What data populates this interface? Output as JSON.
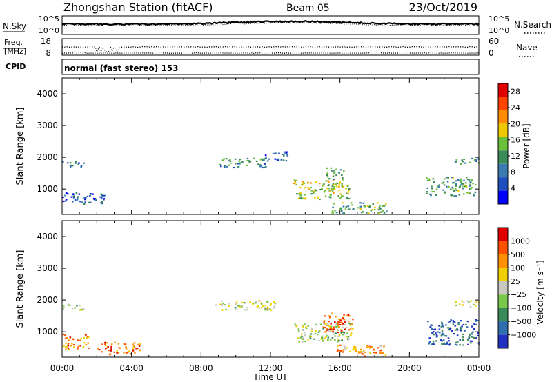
{
  "header": {
    "title": "Zhongshan Station (fitACF)",
    "beam": "Beam 05",
    "date": "23/Oct/2019"
  },
  "top_panel": {
    "left_label": "N.Sky",
    "left_ticks": [
      "10^5",
      "10^0"
    ],
    "right_ticks": [
      "10^5",
      "10^0"
    ],
    "right_label": "N.Search"
  },
  "freq_panel": {
    "left_label_1": "Freq.",
    "left_label_2": "[MHz]",
    "left_ticks": [
      "18",
      "8"
    ],
    "right_ticks": [
      "60",
      "0"
    ],
    "right_label": "Nave"
  },
  "cpid": {
    "label": "CPID",
    "text": "normal (fast stereo) 153"
  },
  "colors": {
    "power_scale": [
      "#0000ff",
      "#1f4fbf",
      "#3a7ab0",
      "#3c8c5a",
      "#6cbf3a",
      "#f0c800",
      "#ff8c00",
      "#ff4500",
      "#e00000"
    ],
    "velocity_scale": [
      "#2030c0",
      "#2f6fb0",
      "#3a8a5a",
      "#78c84a",
      "#c8c8c0",
      "#f0d000",
      "#ff9000",
      "#ff5000",
      "#e00000"
    ]
  },
  "chart_data": [
    {
      "type": "heatmap",
      "name": "power",
      "ylabel": "Slant Range [km]",
      "yticks": [
        "1000",
        "2000",
        "3000",
        "4000"
      ],
      "ylim": [
        200,
        4500
      ],
      "colorbar": {
        "label": "Power [dB]",
        "ticks": [
          "4",
          "8",
          "12",
          "16",
          "20",
          "24",
          "28"
        ],
        "range": [
          0,
          30
        ]
      },
      "xlim": [
        0,
        24
      ],
      "features": [
        {
          "t0": 0.0,
          "t1": 1.3,
          "r0": 1700,
          "r1": 1900,
          "level": 0.25
        },
        {
          "t0": 0.0,
          "t1": 2.5,
          "r0": 550,
          "r1": 900,
          "level": 0.2
        },
        {
          "t0": 9.0,
          "t1": 11.7,
          "r0": 1700,
          "r1": 2000,
          "level": 0.35
        },
        {
          "t0": 11.5,
          "t1": 13.0,
          "r0": 1900,
          "r1": 2200,
          "level": 0.25
        },
        {
          "t0": 13.3,
          "t1": 16.5,
          "r0": 700,
          "r1": 1300,
          "level": 0.55
        },
        {
          "t0": 15.2,
          "t1": 16.2,
          "r0": 1300,
          "r1": 1700,
          "level": 0.4
        },
        {
          "t0": 15.5,
          "t1": 18.7,
          "r0": 250,
          "r1": 600,
          "level": 0.45
        },
        {
          "t0": 20.9,
          "t1": 23.8,
          "r0": 800,
          "r1": 1400,
          "level": 0.4
        },
        {
          "t0": 22.6,
          "t1": 24.0,
          "r0": 1800,
          "r1": 2000,
          "level": 0.35
        }
      ]
    },
    {
      "type": "heatmap",
      "name": "velocity",
      "ylabel": "Slant Range [km]",
      "yticks": [
        "1000",
        "2000",
        "3000",
        "4000"
      ],
      "ylim": [
        200,
        4500
      ],
      "colorbar": {
        "label": "Velocity [m s⁻¹]",
        "ticks": [
          "1000",
          "500",
          "100",
          "25",
          "−25",
          "−100",
          "−500",
          "−1000"
        ],
        "range": [
          -1200,
          1200
        ]
      },
      "xlabel": "Time UT",
      "xticks": [
        "00:00",
        "04:00",
        "08:00",
        "12:00",
        "16:00",
        "20:00",
        "00:00"
      ],
      "xlim": [
        0,
        24
      ],
      "features": [
        {
          "t0": 0.0,
          "t1": 1.2,
          "r0": 1700,
          "r1": 1900,
          "level": 0.5
        },
        {
          "t0": 0.0,
          "t1": 1.5,
          "r0": 450,
          "r1": 950,
          "level": 0.75
        },
        {
          "t0": 2.0,
          "t1": 4.5,
          "r0": 300,
          "r1": 700,
          "level": 0.78
        },
        {
          "t0": 8.8,
          "t1": 12.3,
          "r0": 1700,
          "r1": 2000,
          "level": 0.5
        },
        {
          "t0": 13.3,
          "t1": 16.7,
          "r0": 700,
          "r1": 1300,
          "level": 0.45
        },
        {
          "t0": 15.0,
          "t1": 16.7,
          "r0": 1000,
          "r1": 1600,
          "level": 0.8
        },
        {
          "t0": 15.7,
          "t1": 18.6,
          "r0": 250,
          "r1": 600,
          "level": 0.7
        },
        {
          "t0": 21.0,
          "t1": 24.0,
          "r0": 600,
          "r1": 1400,
          "level": 0.15
        },
        {
          "t0": 22.6,
          "t1": 24.0,
          "r0": 1800,
          "r1": 2000,
          "level": 0.5
        }
      ]
    }
  ]
}
